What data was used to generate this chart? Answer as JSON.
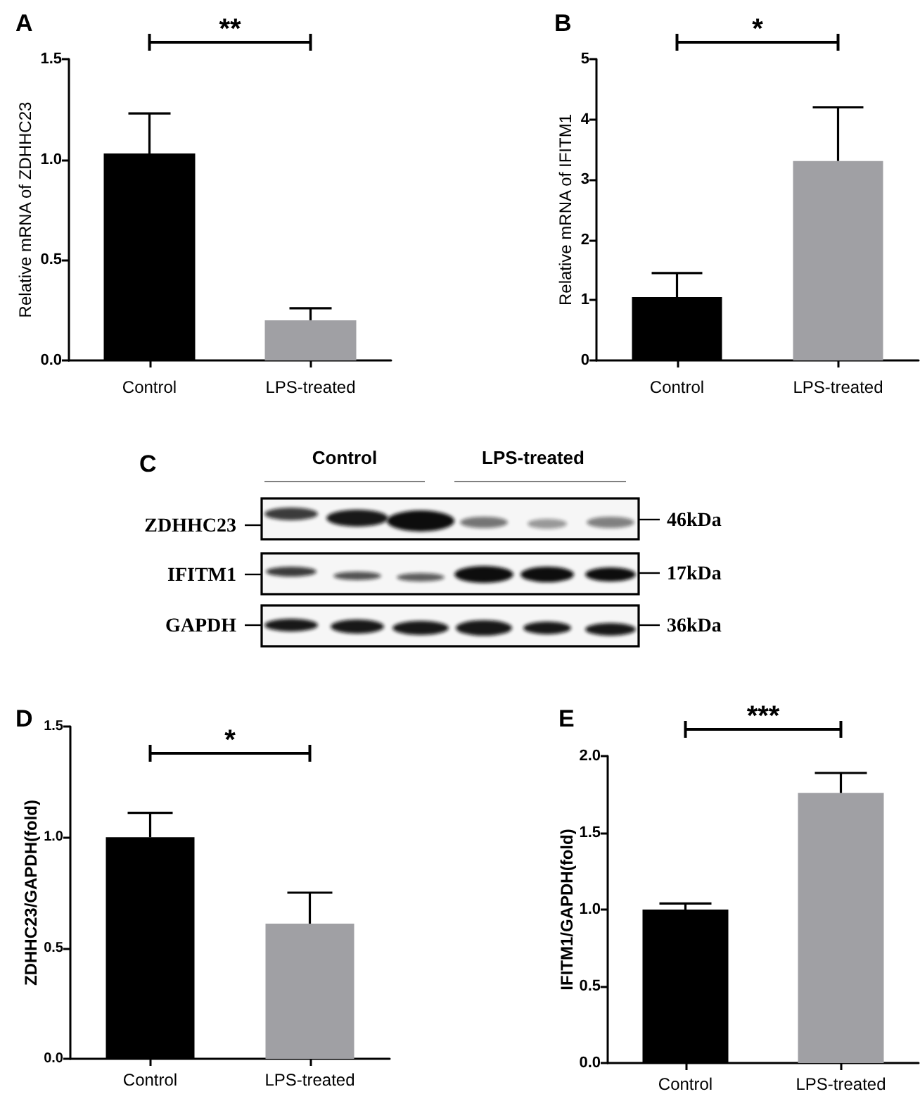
{
  "chart_data": [
    {
      "type": "bar",
      "title": "A",
      "ylabel": "Relative mRNA of ZDHHC23",
      "categories": [
        "Control",
        "LPS-treated"
      ],
      "values": [
        1.03,
        0.2
      ],
      "colors": [
        "#000000",
        "#a0a0a4"
      ],
      "errors": [
        [
          1.03,
          1.23
        ],
        [
          0.2,
          0.26
        ]
      ],
      "ylim": [
        0,
        1.5
      ],
      "yticks": [
        {
          "value": 0,
          "label": "0.0"
        },
        {
          "value": 0.5,
          "label": "0.5"
        },
        {
          "value": 1,
          "label": "1.0"
        },
        {
          "value": 1.5,
          "label": "1.5"
        }
      ],
      "annotations": [
        "**"
      ]
    },
    {
      "type": "bar",
      "title": "B",
      "ylabel": "Relative mRNA of IFITM1",
      "categories": [
        "Control",
        "LPS-treated"
      ],
      "values": [
        1.05,
        3.31
      ],
      "colors": [
        "#000000",
        "#a0a0a4"
      ],
      "errors": [
        [
          1.05,
          1.45
        ],
        [
          3.31,
          4.2
        ]
      ],
      "ylim": [
        0,
        5
      ],
      "yticks": [
        0,
        1,
        2,
        3,
        4,
        5
      ],
      "annotations": [
        "*"
      ]
    },
    {
      "type": "other",
      "title": "C",
      "annotations": [
        "Control",
        "LPS-treated",
        "ZDHHC23",
        "IFITM1",
        "GAPDH",
        "46kDa",
        "17kDa",
        "36kDa"
      ]
    },
    {
      "type": "bar",
      "title": "D",
      "ylabel": "ZDHHC23/GAPDH(fold)",
      "categories": [
        "Control",
        "LPS-treated"
      ],
      "values": [
        1.0,
        0.61
      ],
      "colors": [
        "#000000",
        "#a0a0a4"
      ],
      "errors": [
        [
          1.0,
          1.11
        ],
        [
          0.61,
          0.75
        ]
      ],
      "ylim": [
        0,
        1.5
      ],
      "yticks": [
        {
          "value": 0,
          "label": "0.0"
        },
        {
          "value": 0.5,
          "label": "0.5"
        },
        {
          "value": 1,
          "label": "1.0"
        },
        {
          "value": 1.5,
          "label": "1.5"
        }
      ],
      "annotations": [
        "*"
      ]
    },
    {
      "type": "bar",
      "title": "E",
      "ylabel": "IFITM1/GAPDH(fold)",
      "categories": [
        "Control",
        "LPS-treated"
      ],
      "values": [
        1.0,
        1.76
      ],
      "colors": [
        "#000000",
        "#a0a0a4"
      ],
      "errors": [
        [
          1.0,
          1.04
        ],
        [
          1.76,
          1.89
        ]
      ],
      "ylim": [
        0,
        2
      ],
      "yticks": [
        {
          "value": 0,
          "label": "0.0"
        },
        {
          "value": 0.5,
          "label": "0.5"
        },
        {
          "value": 1,
          "label": "1.0"
        },
        {
          "value": 1.5,
          "label": "1.5"
        },
        {
          "value": 2,
          "label": "2.0"
        }
      ],
      "annotations": [
        "***"
      ]
    }
  ]
}
